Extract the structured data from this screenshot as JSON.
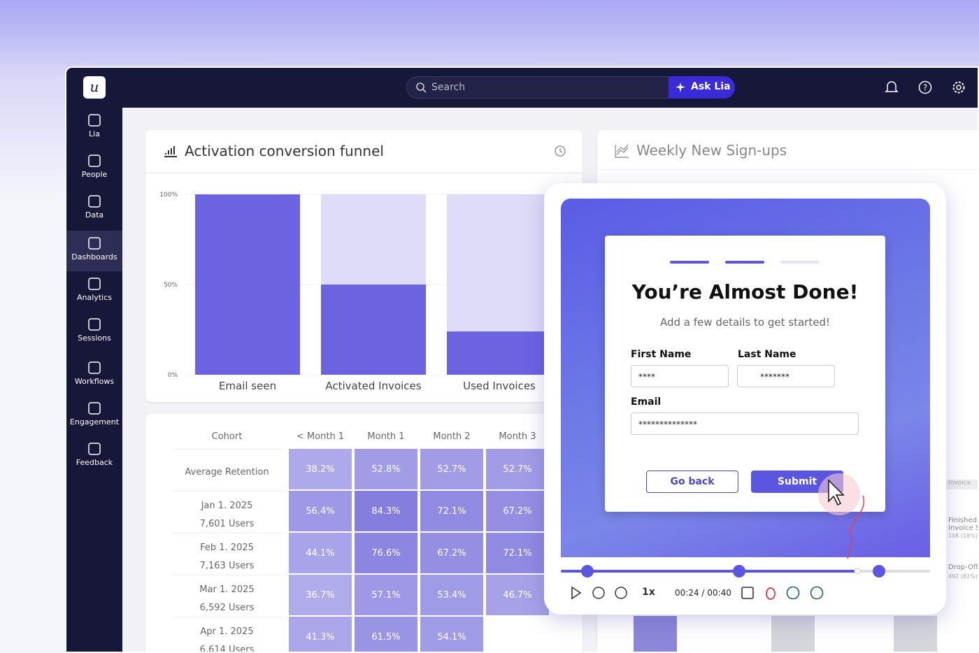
{
  "logo": "u",
  "search": {
    "placeholder": "Search",
    "ask": "Ask Lia"
  },
  "nav": [
    "Lia",
    "People",
    "Data",
    "Dashboards",
    "Analytics",
    "Sessions",
    "Workflows",
    "Engagement",
    "Feedback"
  ],
  "chart_data": {
    "type": "bar",
    "title": "Activation conversion funnel",
    "categories": [
      "Email seen",
      "Activated Invoices",
      "Used Invoices"
    ],
    "values": [
      100,
      50,
      24
    ],
    "color": "#6b63e0",
    "ylim": [
      0,
      100
    ],
    "yticks": [
      {
        "value": 0,
        "label": "0%"
      },
      {
        "value": 50,
        "label": "50%"
      },
      {
        "value": 100,
        "label": "100%"
      }
    ],
    "grid": true
  },
  "signups": {
    "title": "Weekly New Sign-ups",
    "labels": [
      "nt Invoice",
      "Finished Invoice Se",
      "108 (18%)",
      "Drop-Off",
      "492 (82%)"
    ]
  },
  "retention": {
    "headers": [
      "Cohort",
      "< Month 1",
      "Month 1",
      "Month 2",
      "Month 3"
    ],
    "rows": [
      {
        "cohort": "Average Retention",
        "values": [
          "38.2%",
          "52.8%",
          "52.7%",
          "52.7%"
        ]
      },
      {
        "cohort": "Jan 1. 2025",
        "users": "7,601 Users",
        "values": [
          "56.4%",
          "84.3%",
          "72.1%",
          "67.2%"
        ]
      },
      {
        "cohort": "Feb 1. 2025",
        "users": "7,163 Users",
        "values": [
          "44.1%",
          "76.6%",
          "67.2%",
          "72.1%"
        ]
      },
      {
        "cohort": "Mar 1. 2025",
        "users": "6,592 Users",
        "values": [
          "36.7%",
          "57.1%",
          "53.4%",
          "46.7%"
        ]
      },
      {
        "cohort": "Apr 1. 2025",
        "users": "6,614 Users",
        "values": [
          "41.3%",
          "61.5%",
          "54.1%"
        ]
      }
    ]
  },
  "form": {
    "title": "You’re Almost Done!",
    "subtitle": "Add a few details to get started!",
    "first_name": {
      "label": "First Name",
      "value": "****"
    },
    "last_name": {
      "label": "Last Name",
      "value": "*******"
    },
    "email": {
      "label": "Email",
      "value": "**************"
    },
    "back": "Go back",
    "submit": "Submit"
  },
  "player": {
    "speed": "1x",
    "time": "00:24 / 00:40"
  }
}
